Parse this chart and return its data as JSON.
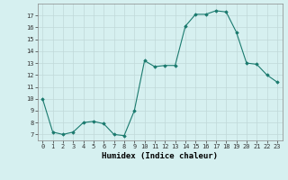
{
  "x": [
    0,
    1,
    2,
    3,
    4,
    5,
    6,
    7,
    8,
    9,
    10,
    11,
    12,
    13,
    14,
    15,
    16,
    17,
    18,
    19,
    20,
    21,
    22,
    23
  ],
  "y": [
    10,
    7.2,
    7.0,
    7.2,
    8.0,
    8.1,
    7.9,
    7.0,
    6.9,
    9.0,
    13.2,
    12.7,
    12.8,
    12.8,
    16.1,
    17.1,
    17.1,
    17.4,
    17.3,
    15.6,
    13.0,
    12.9,
    12.0,
    11.4
  ],
  "line_color": "#1a7a6e",
  "marker_color": "#1a7a6e",
  "bg_color": "#d6f0f0",
  "grid_color": "#c0d8d8",
  "xlabel": "Humidex (Indice chaleur)",
  "xlim": [
    -0.5,
    23.5
  ],
  "ylim": [
    6.5,
    18.0
  ],
  "yticks": [
    7,
    8,
    9,
    10,
    11,
    12,
    13,
    14,
    15,
    16,
    17
  ],
  "xticks": [
    0,
    1,
    2,
    3,
    4,
    5,
    6,
    7,
    8,
    9,
    10,
    11,
    12,
    13,
    14,
    15,
    16,
    17,
    18,
    19,
    20,
    21,
    22,
    23
  ],
  "tick_fontsize": 5.0,
  "xlabel_fontsize": 6.5
}
